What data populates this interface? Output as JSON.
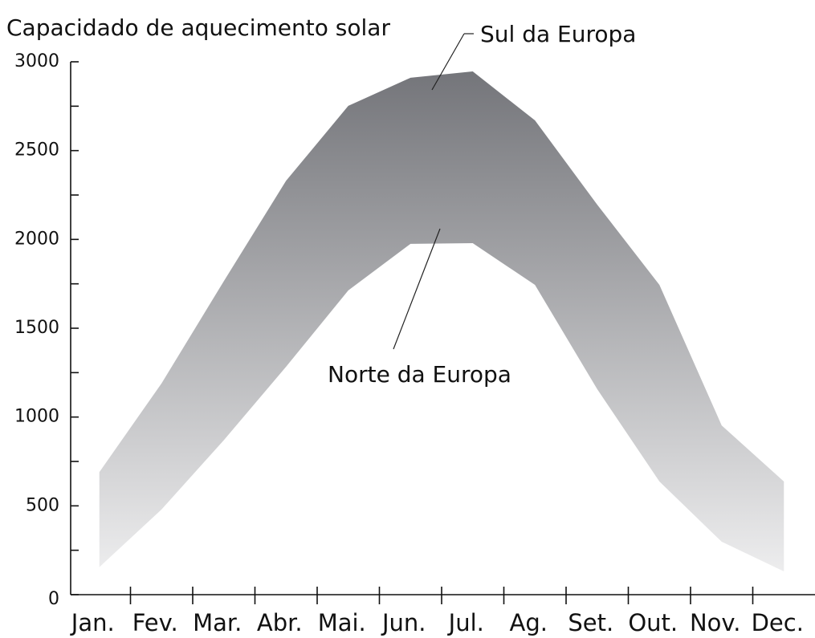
{
  "chart_data": {
    "type": "band",
    "y_axis_label": "Capacidado de aquecimento solar",
    "categories": [
      "Jan.",
      "Fev.",
      "Mar.",
      "Abr.",
      "Mai.",
      "Jun.",
      "Jul.",
      "Ag.",
      "Set.",
      "Out.",
      "Nov.",
      "Dec."
    ],
    "series": [
      {
        "name": "Sul da Europa",
        "values": [
          690,
          1190,
          1765,
          2330,
          2752,
          2910,
          2946,
          2670,
          2196,
          1744,
          953,
          637
        ]
      },
      {
        "name": "Norte da Europa",
        "values": [
          155,
          480,
          870,
          1283,
          1713,
          1975,
          1979,
          1744,
          1157,
          637,
          298,
          131
        ]
      }
    ],
    "gradient": [
      "#74757a",
      "#ededee"
    ],
    "ylim": [
      0,
      3000
    ],
    "yticks": [
      0,
      500,
      1000,
      1500,
      2000,
      2500,
      3000
    ],
    "minor_yticks": [
      250,
      750,
      1250,
      1750,
      2250,
      2750
    ]
  }
}
